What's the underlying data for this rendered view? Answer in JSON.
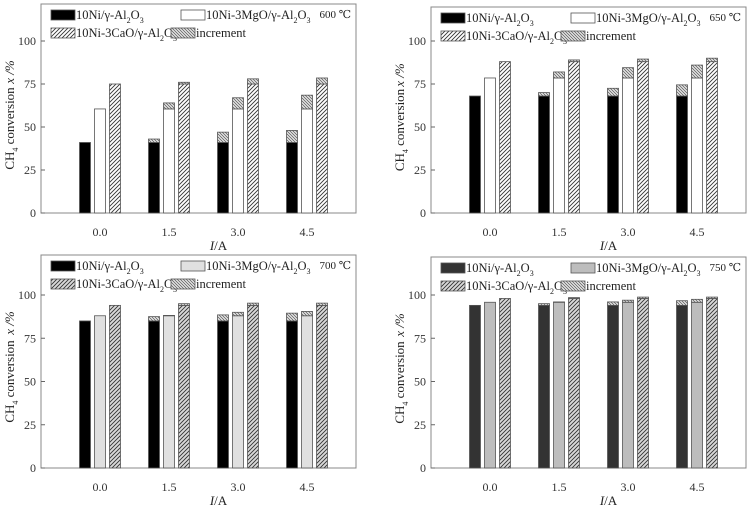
{
  "figure": {
    "legend": {
      "ni": "10Ni/γ-Al2O3",
      "mgo": "10Ni-3MgO/γ-Al2O3",
      "cao": "10Ni-3CaO/γ-Al2O3",
      "increment": "increment"
    },
    "ylabel_main": "CH4 conversion",
    "ylabel_symbol": "x /%",
    "xlabel": "I/A"
  },
  "chart_data": [
    {
      "type": "bar",
      "title": "600 ℃",
      "xlabel": "I/A",
      "ylabel": "CH4 conversion x /%",
      "ylim": [
        0,
        120
      ],
      "yticks": [
        0,
        25,
        50,
        75,
        100
      ],
      "categories": [
        "0.0",
        "1.5",
        "3.0",
        "4.5"
      ],
      "legend_position": "top",
      "colors": {
        "ni": "#000000",
        "mgo": "#ffffff",
        "cao": "hatch",
        "increment": "crosshatch"
      },
      "series": [
        {
          "name": "10Ni/γ-Al2O3",
          "base": [
            41,
            41,
            41,
            41
          ],
          "total": [
            41,
            43,
            47,
            48
          ]
        },
        {
          "name": "10Ni-3MgO/γ-Al2O3",
          "base": [
            60.5,
            60.5,
            60.5,
            60.5
          ],
          "total": [
            60.5,
            64,
            67,
            68.5
          ]
        },
        {
          "name": "10Ni-3CaO/γ-Al2O3",
          "base": [
            75,
            75,
            75,
            75
          ],
          "total": [
            75,
            76,
            78,
            78.5
          ]
        }
      ]
    },
    {
      "type": "bar",
      "title": "650 ℃",
      "xlabel": "I/A",
      "ylabel": "CH4 conversion x /%",
      "ylim": [
        0,
        120
      ],
      "yticks": [
        0,
        25,
        50,
        75,
        100
      ],
      "categories": [
        "0.0",
        "1.5",
        "3.0",
        "4.5"
      ],
      "legend_position": "top",
      "colors": {
        "ni": "#000000",
        "mgo": "#ffffff",
        "cao": "hatch",
        "increment": "crosshatch"
      },
      "series": [
        {
          "name": "10Ni/γ-Al2O3",
          "base": [
            68,
            68,
            68,
            68
          ],
          "total": [
            68,
            70,
            72.5,
            74.5
          ]
        },
        {
          "name": "10Ni-3MgO/γ-Al2O3",
          "base": [
            78.5,
            78.5,
            78.5,
            78.5
          ],
          "total": [
            78.5,
            82,
            84.5,
            86
          ]
        },
        {
          "name": "10Ni-3CaO/γ-Al2O3",
          "base": [
            88,
            88,
            88,
            88
          ],
          "total": [
            88,
            89,
            89.5,
            90
          ]
        }
      ]
    },
    {
      "type": "bar",
      "title": "700 ℃",
      "xlabel": "I/A",
      "ylabel": "CH4 conversion x /%",
      "ylim": [
        0,
        120
      ],
      "yticks": [
        0,
        25,
        50,
        75,
        100
      ],
      "categories": [
        "0.0",
        "1.5",
        "3.0",
        "4.5"
      ],
      "legend_position": "top",
      "colors": {
        "ni": "#000000",
        "mgo": "#e0e0e0",
        "cao": "hatch",
        "increment": "crosshatch"
      },
      "series": [
        {
          "name": "10Ni/γ-Al2O3",
          "base": [
            85,
            85,
            85,
            85
          ],
          "total": [
            85,
            87.5,
            88.5,
            89.5
          ]
        },
        {
          "name": "10Ni-3MgO/γ-Al2O3",
          "base": [
            88,
            88,
            88,
            88
          ],
          "total": [
            88,
            88.2,
            90,
            90.5
          ]
        },
        {
          "name": "10Ni-3CaO/γ-Al2O3",
          "base": [
            94,
            94,
            94,
            94
          ],
          "total": [
            94,
            95,
            95.3,
            95.3
          ]
        }
      ]
    },
    {
      "type": "bar",
      "title": "750 ℃",
      "xlabel": "I/A",
      "ylabel": "CH4 conversion x /%",
      "ylim": [
        0,
        120
      ],
      "yticks": [
        0,
        25,
        50,
        75,
        100
      ],
      "categories": [
        "0.0",
        "1.5",
        "3.0",
        "4.5"
      ],
      "legend_position": "top",
      "colors": {
        "ni": "#333333",
        "mgo": "#bdbdbd",
        "cao": "hatch",
        "increment": "crosshatch"
      },
      "series": [
        {
          "name": "10Ni/γ-Al2O3",
          "base": [
            94,
            94,
            94,
            94
          ],
          "total": [
            94,
            95,
            96,
            96.7
          ]
        },
        {
          "name": "10Ni-3MgO/γ-Al2O3",
          "base": [
            95.8,
            95.8,
            95.8,
            95.8
          ],
          "total": [
            95.8,
            96,
            97,
            97.5
          ]
        },
        {
          "name": "10Ni-3CaO/γ-Al2O3",
          "base": [
            98,
            98,
            98,
            98
          ],
          "total": [
            98,
            98.5,
            98.8,
            98.8
          ]
        }
      ]
    }
  ]
}
